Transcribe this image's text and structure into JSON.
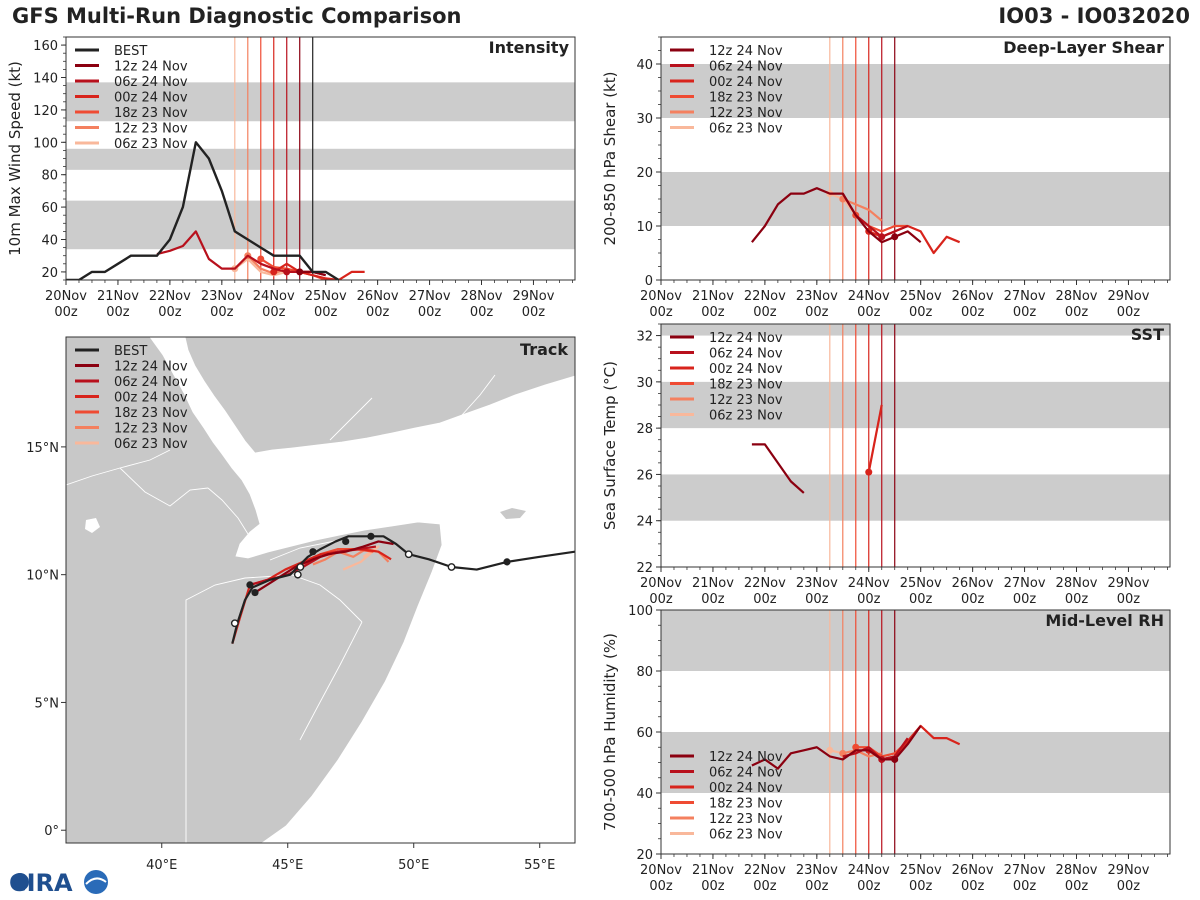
{
  "header": {
    "title": "GFS Multi-Run Diagnostic Comparison",
    "storm": "IO03 - IO032020"
  },
  "logo": {
    "text": "CIRA"
  },
  "colors": {
    "best": "#222222",
    "runs": [
      "#8b0010",
      "#b8101c",
      "#d8241c",
      "#ef4b33",
      "#f4805f",
      "#f9b89b"
    ],
    "band": "#cccccc",
    "land": "#c8c8c8",
    "sea": "#ffffff"
  },
  "time_axis": {
    "ticks": [
      "20Nov\n00z",
      "21Nov\n00z",
      "22Nov\n00z",
      "23Nov\n00z",
      "24Nov\n00z",
      "25Nov\n00z",
      "26Nov\n00z",
      "27Nov\n00z",
      "28Nov\n00z",
      "29Nov\n00z"
    ],
    "xlim": [
      0,
      9.8
    ]
  },
  "runs": [
    {
      "label": "12z 24 Nov",
      "init": 4.5
    },
    {
      "label": "06z 24 Nov",
      "init": 4.25
    },
    {
      "label": "00z 24 Nov",
      "init": 4.0
    },
    {
      "label": "18z 23 Nov",
      "init": 3.75
    },
    {
      "label": "12z 23 Nov",
      "init": 3.5
    },
    {
      "label": "06z 23 Nov",
      "init": 3.25
    }
  ],
  "best_label": "BEST",
  "chart_data": [
    {
      "id": "intensity",
      "type": "line",
      "title": "Intensity",
      "ylabel": "10m Max Wind Speed (kt)",
      "ylim": [
        15,
        165
      ],
      "yticks": [
        20,
        40,
        60,
        80,
        100,
        120,
        140,
        160
      ],
      "bands": [
        [
          34,
          64
        ],
        [
          83,
          96
        ],
        [
          113,
          137
        ]
      ],
      "best": {
        "x": [
          0,
          0.25,
          0.5,
          0.75,
          1,
          1.25,
          1.5,
          1.75,
          2,
          2.25,
          2.5,
          2.75,
          3,
          3.25,
          3.5,
          3.75,
          4,
          4.25,
          4.5,
          4.75,
          5,
          5.25
        ],
        "y": [
          15,
          15,
          20,
          20,
          25,
          30,
          30,
          30,
          40,
          60,
          100,
          90,
          70,
          45,
          40,
          35,
          30,
          30,
          30,
          20,
          20,
          15
        ]
      },
      "series": [
        {
          "name": "12z 24 Nov",
          "x": [
            4.5,
            4.75,
            5.0
          ],
          "y": [
            20,
            20,
            18
          ]
        },
        {
          "name": "06z 24 Nov",
          "x": [
            1.75,
            2.0,
            2.25,
            2.5,
            2.75,
            3.0,
            3.25,
            3.5,
            3.75,
            4.0,
            4.25,
            4.5,
            4.75,
            5.0
          ],
          "y": [
            31,
            33,
            36,
            45,
            28,
            22,
            22,
            30,
            25,
            22,
            20,
            20,
            20,
            18
          ]
        },
        {
          "name": "00z 24 Nov",
          "x": [
            4.0,
            4.25,
            4.5,
            4.75,
            5.0,
            5.25,
            5.5,
            5.75
          ],
          "y": [
            20,
            25,
            20,
            18,
            16,
            15,
            20,
            20
          ]
        },
        {
          "name": "18z 23 Nov",
          "x": [
            3.75,
            4.0,
            4.25,
            4.5,
            4.75,
            5.0
          ],
          "y": [
            28,
            23,
            22,
            20,
            18,
            15
          ]
        },
        {
          "name": "12z 23 Nov",
          "x": [
            3.5,
            3.75,
            4.0,
            4.25,
            4.5
          ],
          "y": [
            30,
            22,
            19,
            22,
            20
          ]
        },
        {
          "name": "06z 23 Nov",
          "x": [
            3.25,
            3.5,
            3.75,
            4.0,
            4.25
          ],
          "y": [
            22,
            28,
            20,
            18,
            20
          ]
        }
      ]
    },
    {
      "id": "shear",
      "type": "line",
      "title": "Deep-Layer Shear",
      "ylabel": "200-850 hPa Shear (kt)",
      "ylim": [
        0,
        45
      ],
      "yticks": [
        0,
        10,
        20,
        30,
        40
      ],
      "bands": [
        [
          10,
          20
        ],
        [
          30,
          40
        ]
      ],
      "series": [
        {
          "name": "12z 24 Nov",
          "x": [
            1.75,
            2.0,
            2.25,
            2.5,
            2.75,
            3.0,
            3.25,
            3.5,
            3.75,
            4.0,
            4.25,
            4.5,
            4.75,
            5.0
          ],
          "y": [
            7,
            10,
            14,
            16,
            16,
            17,
            16,
            16,
            12,
            9,
            7,
            8,
            9,
            7
          ]
        },
        {
          "name": "06z 24 Nov",
          "x": [
            3.5,
            3.75,
            4.0,
            4.25,
            4.5,
            4.75
          ],
          "y": [
            16,
            12,
            10,
            8,
            9,
            10
          ]
        },
        {
          "name": "00z 24 Nov",
          "x": [
            4.0,
            4.25,
            4.5,
            4.75,
            5.0,
            5.25,
            5.5,
            5.75
          ],
          "y": [
            9,
            8,
            9,
            10,
            9,
            5,
            8,
            7
          ]
        },
        {
          "name": "18z 23 Nov",
          "x": [
            3.75,
            4.0,
            4.25,
            4.5,
            4.75
          ],
          "y": [
            12,
            10,
            9,
            10,
            10
          ]
        },
        {
          "name": "12z 23 Nov",
          "x": [
            3.5,
            3.75,
            4.0,
            4.25
          ],
          "y": [
            15,
            14,
            13,
            11
          ]
        },
        {
          "name": "06z 23 Nov",
          "x": [
            3.25,
            3.5,
            3.75
          ],
          "y": [
            16,
            15,
            12
          ]
        }
      ]
    },
    {
      "id": "sst",
      "type": "line",
      "title": "SST",
      "ylabel": "Sea Surface Temp (°C)",
      "ylim": [
        22,
        32.5
      ],
      "yticks": [
        22,
        24,
        26,
        28,
        30,
        32
      ],
      "bands": [
        [
          24,
          26
        ],
        [
          28,
          30
        ],
        [
          32,
          34
        ]
      ],
      "series": [
        {
          "name": "12z 24 Nov",
          "x": [
            1.75,
            2.0,
            2.25,
            2.5,
            2.75
          ],
          "y": [
            27.3,
            27.3,
            26.5,
            25.7,
            25.2
          ]
        },
        {
          "name": "06z 24 Nov",
          "x": [],
          "y": []
        },
        {
          "name": "00z 24 Nov",
          "x": [
            4.0,
            4.25
          ],
          "y": [
            26.1,
            29.0
          ]
        },
        {
          "name": "18z 23 Nov",
          "x": [],
          "y": []
        },
        {
          "name": "12z 23 Nov",
          "x": [],
          "y": []
        },
        {
          "name": "06z 23 Nov",
          "x": [],
          "y": []
        }
      ]
    },
    {
      "id": "rh",
      "type": "line",
      "title": "Mid-Level RH",
      "ylabel": "700-500 hPa Humidity (%)",
      "ylim": [
        20,
        100
      ],
      "yticks": [
        20,
        40,
        60,
        80,
        100
      ],
      "bands": [
        [
          40,
          60
        ],
        [
          80,
          100
        ]
      ],
      "series": [
        {
          "name": "12z 24 Nov",
          "x": [
            1.75,
            2.0,
            2.25,
            2.5,
            2.75,
            3.0,
            3.25,
            3.5,
            3.75,
            4.0,
            4.25,
            4.5,
            4.75,
            5.0
          ],
          "y": [
            49,
            51,
            48,
            53,
            54,
            55,
            52,
            51,
            54,
            54,
            51,
            51,
            56,
            62
          ]
        },
        {
          "name": "06z 24 Nov",
          "x": [
            3.5,
            3.75,
            4.0,
            4.25,
            4.5,
            4.75
          ],
          "y": [
            52,
            53,
            55,
            51,
            52,
            58
          ]
        },
        {
          "name": "00z 24 Nov",
          "x": [
            4.0,
            4.25,
            4.5,
            4.75,
            5.0,
            5.25,
            5.5,
            5.75
          ],
          "y": [
            54,
            51,
            52,
            57,
            62,
            58,
            58,
            56
          ]
        },
        {
          "name": "18z 23 Nov",
          "x": [
            3.75,
            4.0,
            4.25,
            4.5,
            4.75
          ],
          "y": [
            55,
            55,
            52,
            53,
            57
          ]
        },
        {
          "name": "12z 23 Nov",
          "x": [
            3.5,
            3.75,
            4.0,
            4.25
          ],
          "y": [
            53,
            54,
            52,
            53
          ]
        },
        {
          "name": "06z 23 Nov",
          "x": [
            3.25,
            3.5,
            3.75
          ],
          "y": [
            54,
            53,
            54
          ]
        }
      ]
    },
    {
      "id": "track",
      "type": "map-track",
      "title": "Track",
      "xlim": [
        36.2,
        56.4
      ],
      "ylim": [
        -0.5,
        19.3
      ],
      "xticks": [
        {
          "v": 40,
          "l": "40°E"
        },
        {
          "v": 45,
          "l": "45°E"
        },
        {
          "v": 50,
          "l": "50°E"
        },
        {
          "v": 55,
          "l": "55°E"
        }
      ],
      "yticks": [
        {
          "v": 0,
          "l": "0°"
        },
        {
          "v": 5,
          "l": "5°N"
        },
        {
          "v": 10,
          "l": "10°N"
        },
        {
          "v": 15,
          "l": "15°N"
        }
      ],
      "best": {
        "lon": [
          56.4,
          55.0,
          53.7,
          52.5,
          51.5,
          50.6,
          49.8,
          49.3,
          48.8,
          48.0,
          47.4,
          46.9,
          46.3,
          45.8,
          45.5,
          45.1,
          44.3,
          43.6,
          43.3,
          43.0,
          42.8
        ],
        "lat": [
          10.9,
          10.7,
          10.5,
          10.2,
          10.3,
          10.6,
          10.8,
          11.2,
          11.5,
          11.5,
          11.5,
          11.3,
          11.0,
          10.7,
          10.4,
          10.0,
          9.8,
          9.5,
          9.0,
          8.1,
          7.3
        ],
        "filled": [
          [
            53.7,
            10.5
          ],
          [
            48.3,
            11.5
          ],
          [
            47.3,
            11.3
          ],
          [
            46.0,
            10.9
          ],
          [
            43.7,
            9.3
          ],
          [
            43.5,
            9.6
          ]
        ],
        "open": [
          [
            51.5,
            10.3
          ],
          [
            49.8,
            10.8
          ],
          [
            45.5,
            10.3
          ],
          [
            45.4,
            10.0
          ],
          [
            42.9,
            8.1
          ]
        ]
      },
      "series": [
        {
          "name": "12z 24 Nov",
          "lon": [
            49.2,
            48.6,
            48.0,
            47.3,
            46.6,
            46.0,
            45.3,
            44.5,
            43.7
          ],
          "lat": [
            11.2,
            11.3,
            11.1,
            10.9,
            10.8,
            10.6,
            10.3,
            9.8,
            9.3
          ]
        },
        {
          "name": "06z 24 Nov",
          "lon": [
            48.5,
            47.8,
            47.0,
            46.3,
            45.6,
            45.0,
            44.2,
            43.5
          ],
          "lat": [
            11.1,
            11.0,
            10.9,
            10.7,
            10.3,
            10.0,
            9.8,
            9.6
          ]
        },
        {
          "name": "00z 24 Nov",
          "lon": [
            49.1,
            48.6,
            47.9,
            47.0,
            46.3,
            45.6,
            44.9,
            44.2,
            43.5,
            43.1,
            42.8
          ],
          "lat": [
            10.6,
            10.9,
            11.0,
            10.9,
            10.8,
            10.5,
            10.2,
            9.8,
            9.6,
            8.3,
            7.3
          ]
        },
        {
          "name": "18z 23 Nov",
          "lon": [
            48.4,
            47.7,
            47.0,
            46.3,
            45.6
          ],
          "lat": [
            10.9,
            11.0,
            11.0,
            10.8,
            10.3
          ]
        },
        {
          "name": "12z 23 Nov",
          "lon": [
            49.0,
            48.6,
            48.1,
            47.6,
            47.0,
            46.5,
            46.0
          ],
          "lat": [
            10.5,
            10.9,
            11.0,
            10.7,
            10.9,
            10.6,
            10.4
          ]
        },
        {
          "name": "06z 23 Nov",
          "lon": [
            48.0,
            48.6,
            47.9,
            47.2
          ],
          "lat": [
            10.7,
            11.1,
            10.5,
            10.2
          ]
        }
      ]
    }
  ]
}
